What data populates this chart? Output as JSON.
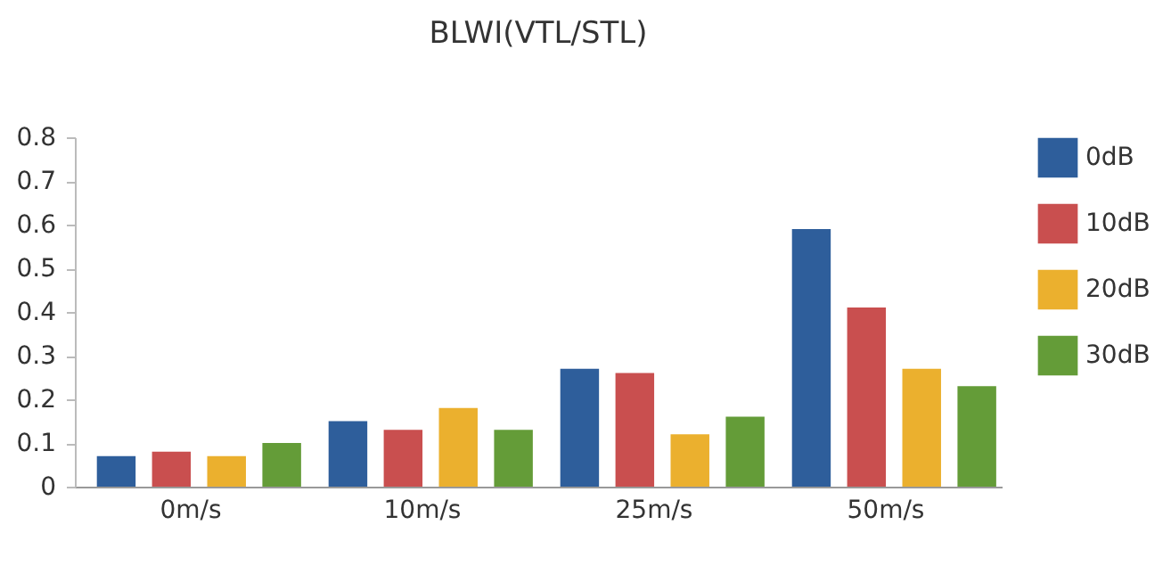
{
  "chart_data": {
    "type": "bar",
    "title": "BLWI(VTL/STL)",
    "categories": [
      "0m/s",
      "10m/s",
      "25m/s",
      "50m/s"
    ],
    "series": [
      {
        "name": "0dB",
        "color": "#2e5e9b",
        "values": [
          0.07,
          0.15,
          0.27,
          0.59
        ]
      },
      {
        "name": "10dB",
        "color": "#c94f4f",
        "values": [
          0.08,
          0.13,
          0.26,
          0.41
        ]
      },
      {
        "name": "20dB",
        "color": "#ebb02e",
        "values": [
          0.07,
          0.18,
          0.12,
          0.27
        ]
      },
      {
        "name": "30dB",
        "color": "#649c38",
        "values": [
          0.1,
          0.13,
          0.16,
          0.23
        ]
      }
    ],
    "ylim": [
      0,
      0.8
    ],
    "yticks": [
      0,
      0.1,
      0.2,
      0.3,
      0.4,
      0.5,
      0.6,
      0.7,
      0.8
    ],
    "grid": false,
    "legend": "right"
  }
}
